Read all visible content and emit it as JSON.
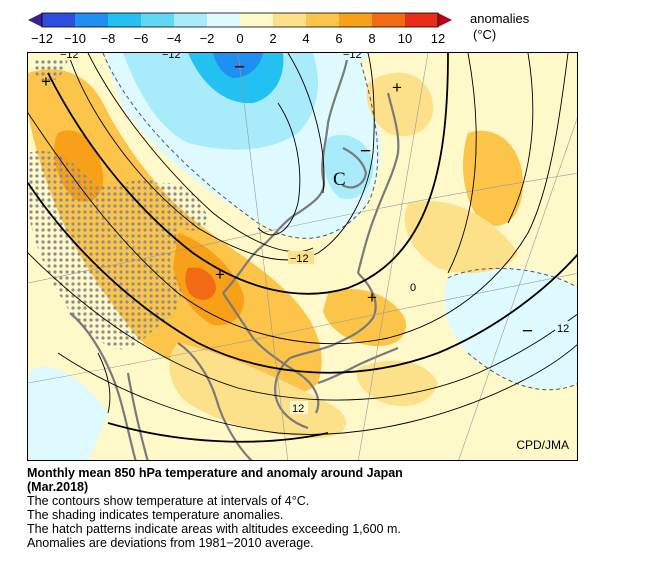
{
  "colorbar": {
    "title": "anomalies",
    "unit": "(°C)",
    "ticks": [
      "−12",
      "−10",
      "−8",
      "−6",
      "−4",
      "−2",
      "0",
      "2",
      "4",
      "6",
      "8",
      "10",
      "12"
    ],
    "colors": [
      "#3a1f8f",
      "#2f4de0",
      "#1f8ff2",
      "#23c0f2",
      "#a8ebfa",
      "#dffaff",
      "#fff8c8",
      "#fde08a",
      "#fdc44a",
      "#f8a018",
      "#f36a14",
      "#e82e1a",
      "#b8001a"
    ]
  },
  "map": {
    "credit": "CPD/JMA",
    "contour_labels": [
      "−12",
      "−12",
      "−12",
      "−12",
      "0",
      "12",
      "12"
    ],
    "symbols": [
      "+",
      "+",
      "+",
      "−",
      "−",
      "−",
      "C"
    ]
  },
  "caption": {
    "title": "Monthly mean 850 hPa temperature and anomaly around Japan",
    "subtitle": "(Mar.2018)",
    "lines": [
      "The contours show temperature at intervals of 4°C.",
      "The shading indicates temperature anomalies.",
      "The hatch patterns indicate areas with altitudes exceeding 1,600 m.",
      "Anomalies are deviations from 1981−2010 average."
    ]
  }
}
